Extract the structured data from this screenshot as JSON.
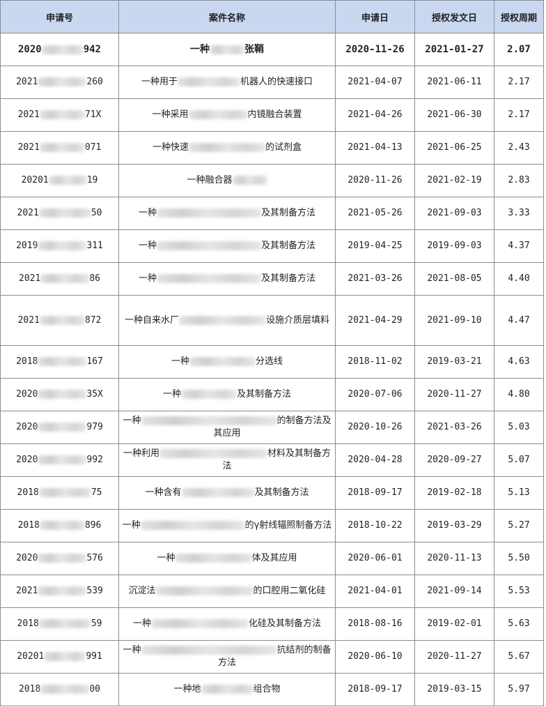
{
  "table": {
    "headers": [
      "申请号",
      "案件名称",
      "申请日",
      "授权发文日",
      "授权周期"
    ],
    "rows": [
      {
        "app": [
          "2020",
          "942"
        ],
        "name": [
          "一种",
          "张鞘"
        ],
        "filed": "2020-11-26",
        "granted": "2021-01-27",
        "period": "2.07"
      },
      {
        "app": [
          "2021",
          "260"
        ],
        "name": [
          "一种用于",
          "机器人的快速接口"
        ],
        "filed": "2021-04-07",
        "granted": "2021-06-11",
        "period": "2.17"
      },
      {
        "app": [
          "2021",
          "71X"
        ],
        "name": [
          "一种采用",
          "内镜融合装置"
        ],
        "filed": "2021-04-26",
        "granted": "2021-06-30",
        "period": "2.17"
      },
      {
        "app": [
          "2021",
          "071"
        ],
        "name": [
          "一种快速",
          "的试剂盒"
        ],
        "filed": "2021-04-13",
        "granted": "2021-06-25",
        "period": "2.43"
      },
      {
        "app": [
          "20201",
          "19"
        ],
        "name": [
          "一种融合器"
        ],
        "filed": "2020-11-26",
        "granted": "2021-02-19",
        "period": "2.83"
      },
      {
        "app": [
          "2021",
          "50"
        ],
        "name": [
          "一种",
          "及其制备方法"
        ],
        "filed": "2021-05-26",
        "granted": "2021-09-03",
        "period": "3.33"
      },
      {
        "app": [
          "2019",
          "311"
        ],
        "name": [
          "一种",
          "及其制备方法"
        ],
        "filed": "2019-04-25",
        "granted": "2019-09-03",
        "period": "4.37"
      },
      {
        "app": [
          "2021",
          "86"
        ],
        "name": [
          "一种",
          "及其制备方法"
        ],
        "filed": "2021-03-26",
        "granted": "2021-08-05",
        "period": "4.40"
      },
      {
        "app": [
          "2021",
          "872"
        ],
        "name": [
          "一种自来水厂",
          "设施介质层填料"
        ],
        "filed": "2021-04-29",
        "granted": "2021-09-10",
        "period": "4.47"
      },
      {
        "app": [
          "2018",
          "167"
        ],
        "name": [
          "一种",
          "分选线"
        ],
        "filed": "2018-11-02",
        "granted": "2019-03-21",
        "period": "4.63"
      },
      {
        "app": [
          "2020",
          "35X"
        ],
        "name": [
          "一种",
          "及其制备方法"
        ],
        "filed": "2020-07-06",
        "granted": "2020-11-27",
        "period": "4.80"
      },
      {
        "app": [
          "2020",
          "979"
        ],
        "name": [
          "一种",
          "的制备方法及其应用"
        ],
        "filed": "2020-10-26",
        "granted": "2021-03-26",
        "period": "5.03"
      },
      {
        "app": [
          "2020",
          "992"
        ],
        "name": [
          "一种利用",
          "材料及其制备方法"
        ],
        "filed": "2020-04-28",
        "granted": "2020-09-27",
        "period": "5.07"
      },
      {
        "app": [
          "2018",
          "75"
        ],
        "name": [
          "一种含有",
          "及其制备方法"
        ],
        "filed": "2018-09-17",
        "granted": "2019-02-18",
        "period": "5.13"
      },
      {
        "app": [
          "2018",
          "896"
        ],
        "name": [
          "一种",
          "的γ射线辐照制备方法"
        ],
        "filed": "2018-10-22",
        "granted": "2019-03-29",
        "period": "5.27"
      },
      {
        "app": [
          "2020",
          "576"
        ],
        "name": [
          "一种",
          "体及其应用"
        ],
        "filed": "2020-06-01",
        "granted": "2020-11-13",
        "period": "5.50"
      },
      {
        "app": [
          "2021",
          "539"
        ],
        "name": [
          "沉淀法",
          "的口腔用二氧化硅"
        ],
        "filed": "2021-04-01",
        "granted": "2021-09-14",
        "period": "5.53"
      },
      {
        "app": [
          "2018",
          "59"
        ],
        "name": [
          "一种",
          "化硅及其制备方法"
        ],
        "filed": "2018-08-16",
        "granted": "2019-02-01",
        "period": "5.63"
      },
      {
        "app": [
          "20201",
          "991"
        ],
        "name": [
          "一种",
          "抗结剂的制备方法"
        ],
        "filed": "2020-06-10",
        "granted": "2020-11-27",
        "period": "5.67"
      },
      {
        "app": [
          "2018",
          "00"
        ],
        "name": [
          "一种地",
          "组合物"
        ],
        "filed": "2018-09-17",
        "granted": "2019-03-15",
        "period": "5.97"
      }
    ]
  }
}
